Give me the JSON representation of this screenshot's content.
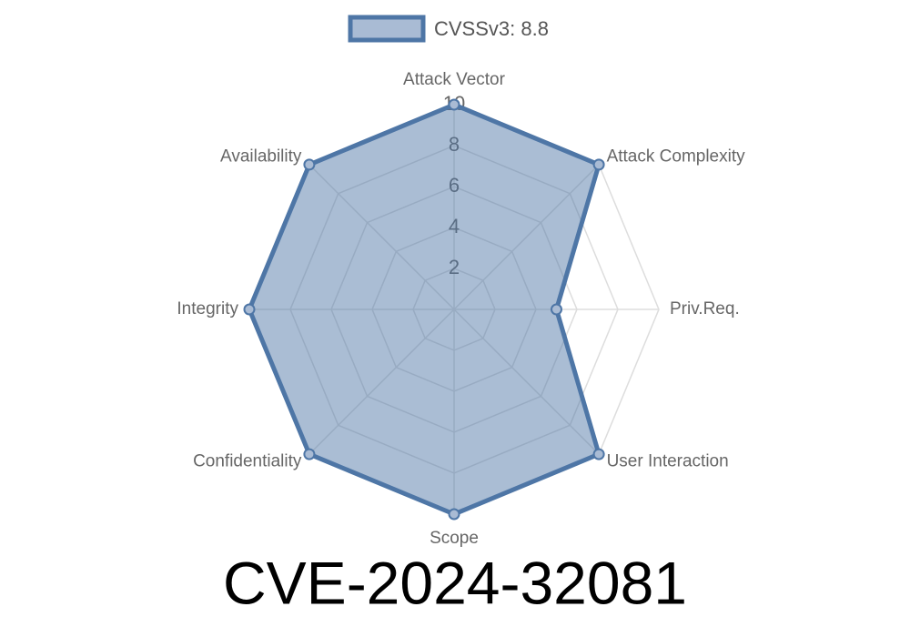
{
  "chart_data": {
    "type": "radar",
    "title": "CVE-2024-32081",
    "categories": [
      "Attack Vector",
      "Attack Complexity",
      "Priv.Req.",
      "User Interaction",
      "Scope",
      "Confidentiality",
      "Integrity",
      "Availability"
    ],
    "series": [
      {
        "name": "CVSSv3: 8.8",
        "color": "#4e76a6",
        "values": [
          10,
          10,
          5,
          10,
          10,
          10,
          10,
          10
        ]
      }
    ],
    "ylim": [
      0,
      10
    ],
    "yticks": [
      2,
      4,
      6,
      8,
      10
    ],
    "grid": true,
    "legend": "top"
  }
}
